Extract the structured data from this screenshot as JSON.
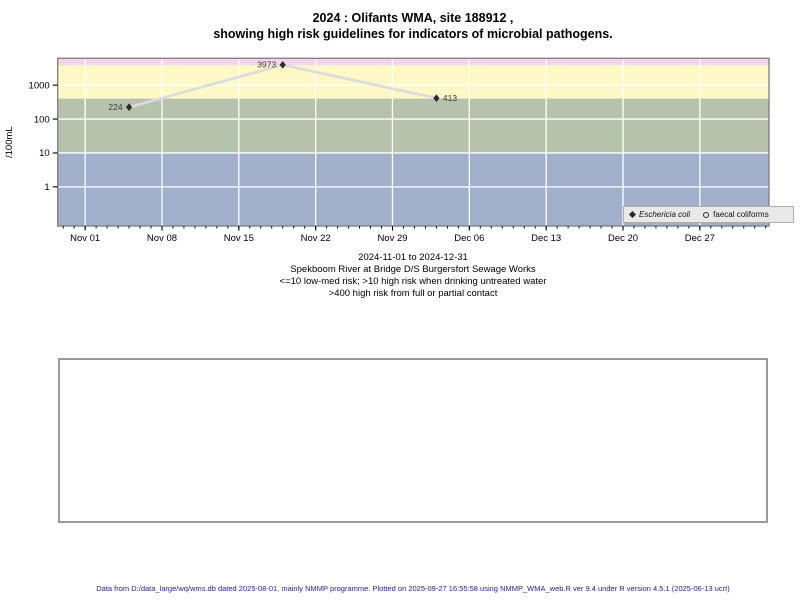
{
  "title": {
    "line1": "2024 : Olifants WMA, site 188912 ,",
    "line2": "showing high risk guidelines for indicators of microbial pathogens."
  },
  "subtitle": {
    "lines": [
      "2024-11-01 to 2024-12-31",
      "Spekboom River at Bridge D/S Burgersfort Sewage Works",
      "<=10 low-med risk; >10 high risk when drinking untreated water",
      ">400 high risk from full or partial contact"
    ]
  },
  "legend": {
    "items": [
      {
        "label": "Eschericia coli",
        "marker": "filled-diamond",
        "italic": true
      },
      {
        "label": "faecal coliforms",
        "marker": "open-circle",
        "italic": false
      }
    ]
  },
  "footer": {
    "text": "Data from D:/data_large/wq/wms.db dated 2025-08-01, mainly NMMP programme. Plotted on 2025-09-27 16:55:58 using NMMP_WMA_web.R ver 9.4 under R version 4.5.1 (2025-06-13 ucrt)"
  },
  "chart_data": {
    "type": "line",
    "title": "2024 : Olifants WMA, site 188912 , showing high risk guidelines for indicators of microbial pathogens.",
    "ylabel": "/100mL",
    "y_scale": "log10",
    "ylim": [
      0.07,
      6200
    ],
    "y_ticks": [
      {
        "value": 1,
        "label": "1"
      },
      {
        "value": 10,
        "label": "10"
      },
      {
        "value": 100,
        "label": "100"
      },
      {
        "value": 1000,
        "label": "1000"
      }
    ],
    "x_domain_days": [
      -2.5,
      62.3
    ],
    "x_ticks": [
      {
        "day": 0,
        "label": "Nov 01"
      },
      {
        "day": 7,
        "label": "Nov 08"
      },
      {
        "day": 14,
        "label": "Nov 15"
      },
      {
        "day": 21,
        "label": "Nov 22"
      },
      {
        "day": 28,
        "label": "Nov 29"
      },
      {
        "day": 35,
        "label": "Dec 06"
      },
      {
        "day": 42,
        "label": "Dec 13"
      },
      {
        "day": 49,
        "label": "Dec 20"
      },
      {
        "day": 56,
        "label": "Dec 27"
      }
    ],
    "minor_tick_every_days": 1,
    "guidelines": {
      "drinking_high_risk_above": 10,
      "contact_high_risk_above": 400
    },
    "risk_bands": [
      {
        "name": "pink",
        "color": "#f6d2ec",
        "from": 3900,
        "to": 6200
      },
      {
        "name": "yellow",
        "color": "#fdf8c6",
        "from": 400,
        "to": 3900
      },
      {
        "name": "green",
        "color": "#b7c2ad",
        "from": 10,
        "to": 400
      },
      {
        "name": "blue",
        "color": "#a1afcb",
        "from": 0.07,
        "to": 10
      }
    ],
    "grid_color": "#ffffff",
    "series": [
      {
        "name": "Eschericia coli",
        "marker": "filled-diamond",
        "line_color": "#dcdcdc",
        "marker_color": "#2a2a2a",
        "points": [
          {
            "date": "2024-11-05",
            "day": 4,
            "value": 224,
            "label": "224",
            "label_side": "left"
          },
          {
            "date": "2024-11-19",
            "day": 18,
            "value": 3973,
            "label": "3973",
            "label_side": "left"
          },
          {
            "date": "2024-12-03",
            "day": 32,
            "value": 413,
            "label": "413",
            "label_side": "right"
          }
        ]
      },
      {
        "name": "faecal coliforms",
        "marker": "open-circle",
        "points": []
      }
    ]
  }
}
